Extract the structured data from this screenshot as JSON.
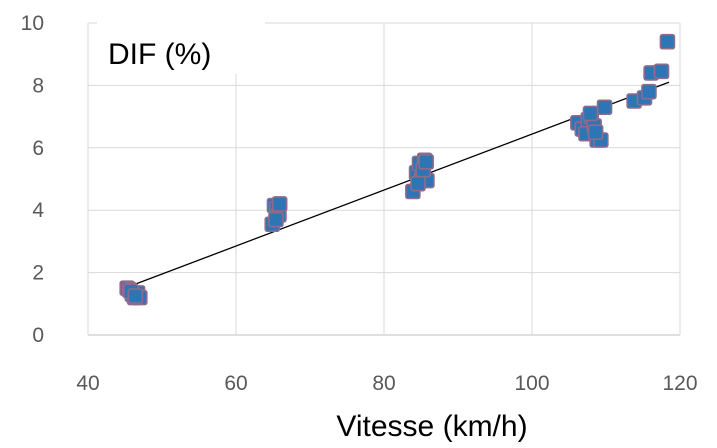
{
  "chart_data": {
    "type": "scatter",
    "title": "",
    "ylabel": "DIF (%)",
    "xlabel": "Vitesse (km/h)",
    "xlim": [
      40,
      120
    ],
    "ylim": [
      0,
      10
    ],
    "xticks": [
      40,
      60,
      80,
      100,
      120
    ],
    "yticks": [
      0,
      2,
      4,
      6,
      8,
      10
    ],
    "grid": true,
    "marker_color": "#2e75b6",
    "marker_edge_color": "#8f6c8c",
    "trendline": {
      "type": "linear",
      "x": [
        45.5,
        118.5
      ],
      "y": [
        1.55,
        8.1
      ],
      "color": "#000000"
    },
    "series": [
      {
        "x": [
          45.3,
          45.6,
          46.0,
          46.3,
          46.7,
          47.0,
          45.8,
          46.4,
          64.9,
          65.2,
          65.5,
          65.8,
          65.4,
          65.9,
          83.9,
          84.4,
          84.8,
          85.1,
          85.5,
          85.8,
          84.6,
          85.3,
          85.7,
          106.2,
          106.8,
          107.3,
          107.6,
          108.0,
          108.4,
          108.8,
          109.3,
          109.8,
          107.9,
          108.6,
          113.8,
          115.2,
          115.8,
          116.1,
          117.5,
          118.3
        ],
        "y": [
          1.5,
          1.45,
          1.3,
          1.2,
          1.35,
          1.2,
          1.4,
          1.25,
          3.55,
          4.15,
          4.05,
          3.85,
          3.7,
          4.2,
          4.6,
          5.2,
          5.5,
          5.0,
          5.6,
          4.95,
          4.85,
          5.3,
          5.55,
          6.8,
          6.6,
          6.45,
          6.9,
          7.0,
          6.7,
          6.25,
          6.25,
          7.3,
          7.1,
          6.5,
          7.5,
          7.6,
          7.8,
          8.4,
          8.45,
          9.4
        ]
      }
    ]
  }
}
